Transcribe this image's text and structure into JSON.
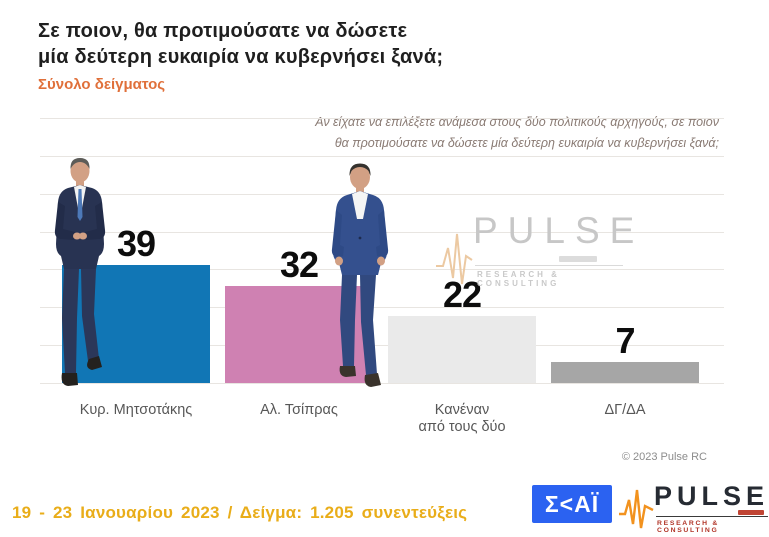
{
  "header": {
    "title_line1": "Σε ποιον, θα προτιμούσατε να δώσετε",
    "title_line2": "μία δεύτερη ευκαιρία να κυβερνήσει ξανά;",
    "subtitle": "Σύνολο δείγματος"
  },
  "annotation": {
    "line1": "Αν είχατε να επιλέξετε ανάμεσα στους δύο πολιτικούς αρχηγούς, σε ποιον",
    "line2": "θα προτιμούσατε να δώσετε μία δεύτερη ευκαιρία να κυβερνήσει ξανά;"
  },
  "chart_data": {
    "type": "bar",
    "title": "Σε ποιον, θα προτιμούσατε να δώσετε μία δεύτερη ευκαιρία να κυβερνήσει ξανά;",
    "subtitle": "Σύνολο δείγματος",
    "categories": [
      "Κυρ. Μητσοτάκης",
      "Αλ. Τσίπρας",
      "Κανέναν από τους δύο",
      "ΔΓ/ΔΑ"
    ],
    "category_lines": [
      [
        "Κυρ. Μητσοτάκης"
      ],
      [
        "Αλ. Τσίπρας"
      ],
      [
        "Κανέναν",
        "από τους δύο"
      ],
      [
        "ΔΓ/ΔΑ"
      ]
    ],
    "values": [
      39,
      32,
      22,
      7
    ],
    "unit": "percent of sample",
    "bar_colors": [
      "#1176b5",
      "#cf81b2",
      "#eaeaea",
      "#a6a6a6"
    ],
    "value_label_color": "#0d0d0d",
    "grid": true,
    "gridline_count": 8,
    "ylim": [
      0,
      87.5
    ],
    "legend": "none",
    "xlabel": "",
    "ylabel": ""
  },
  "watermark": {
    "brand": "PULSE",
    "tagline": "RESEARCH & CONSULTING"
  },
  "footer": {
    "copyright": "© 2023 Pulse RC",
    "fieldwork": "19 - 23 Ιανουαρίου 2023 / Δείγμα: 1.205 συνεντεύξεις",
    "skai_logo": {
      "text": "ΣΚΑΪ",
      "display": "Σ<ΑΪ",
      "color": "#2b62f1"
    },
    "pulse_logo": {
      "brand": "PULSE",
      "tagline": "RESEARCH & CONSULTING",
      "accent": "#f2921e"
    }
  }
}
